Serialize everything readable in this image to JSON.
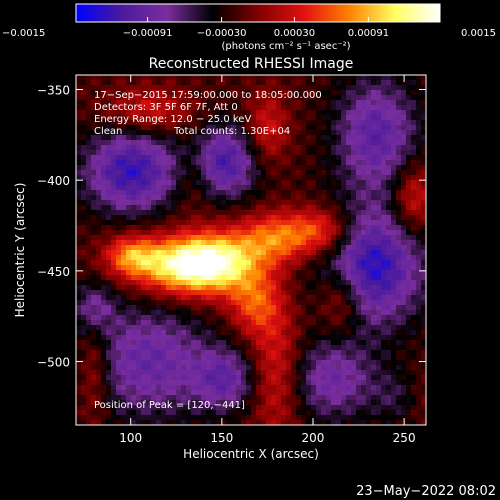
{
  "colorbar": {
    "tick_labels": [
      "−0.0015",
      "−0.00091",
      "−0.00030",
      "0.00030",
      "0.00091",
      "0.0015"
    ],
    "unit_label": "(photons cm⁻² s⁻¹ asec⁻²)",
    "range": [
      -0.0015,
      0.0015
    ]
  },
  "image_info": {
    "line1": "17−Sep−2015 17:59:00.000 to 18:05:00.000",
    "line2": "Detectors: 3F 5F 6F 7F, Att 0",
    "line3": "Energy Range: 12.0 − 25.0 keV",
    "line4_left": "Clean",
    "line4_right": "Total counts: 1.30E+04",
    "peak": "Position of Peak = [120,−441]"
  },
  "footer": {
    "date": "23−May−2022 08:02"
  },
  "chart_data": {
    "type": "heatmap",
    "title": "Reconstructed RHESSI Image",
    "xlabel": "Heliocentric X (arcsec)",
    "ylabel": "Heliocentric Y (arcsec)",
    "xlim": [
      70,
      262
    ],
    "ylim": [
      -535,
      -342
    ],
    "x_ticks": [
      {
        "value": 100,
        "label": "100"
      },
      {
        "value": 150,
        "label": "150"
      },
      {
        "value": 200,
        "label": "200"
      },
      {
        "value": 250,
        "label": "250"
      }
    ],
    "y_ticks": [
      {
        "value": -350,
        "label": "−350"
      },
      {
        "value": -400,
        "label": "−400"
      },
      {
        "value": -450,
        "label": "−450"
      },
      {
        "value": -500,
        "label": "−500"
      }
    ],
    "peak_position": [
      120,
      -441
    ],
    "colormap": [
      "#0000ff",
      "#4a1a9c",
      "#7a2e9e",
      "#000000",
      "#800000",
      "#e01010",
      "#ff8000",
      "#ffff60",
      "#ffffff"
    ]
  }
}
